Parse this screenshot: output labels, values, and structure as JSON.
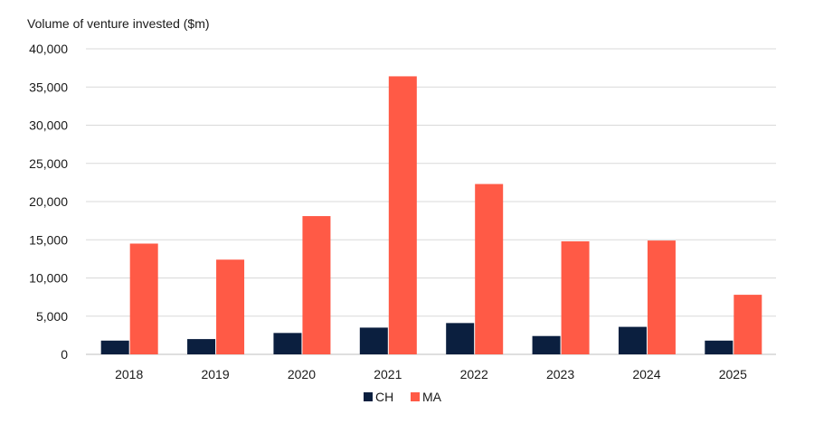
{
  "chart_data": {
    "type": "bar",
    "title": "Volume of venture invested ($m)",
    "xlabel": "",
    "ylabel": "",
    "categories": [
      "2018",
      "2019",
      "2020",
      "2021",
      "2022",
      "2023",
      "2024",
      "2025"
    ],
    "series": [
      {
        "name": "CH",
        "color": "#0b1f3f",
        "values": [
          1800,
          2000,
          2800,
          3500,
          4100,
          2400,
          3600,
          1800
        ]
      },
      {
        "name": "MA",
        "color": "#ff5a46",
        "values": [
          14500,
          12400,
          18100,
          36400,
          22300,
          14800,
          14900,
          7800
        ]
      }
    ],
    "ylim": [
      0,
      40000
    ],
    "yticks": [
      "0",
      "5,000",
      "10,000",
      "15,000",
      "20,000",
      "25,000",
      "30,000",
      "35,000",
      "40,000"
    ],
    "grid": true,
    "legend_position": "bottom"
  }
}
